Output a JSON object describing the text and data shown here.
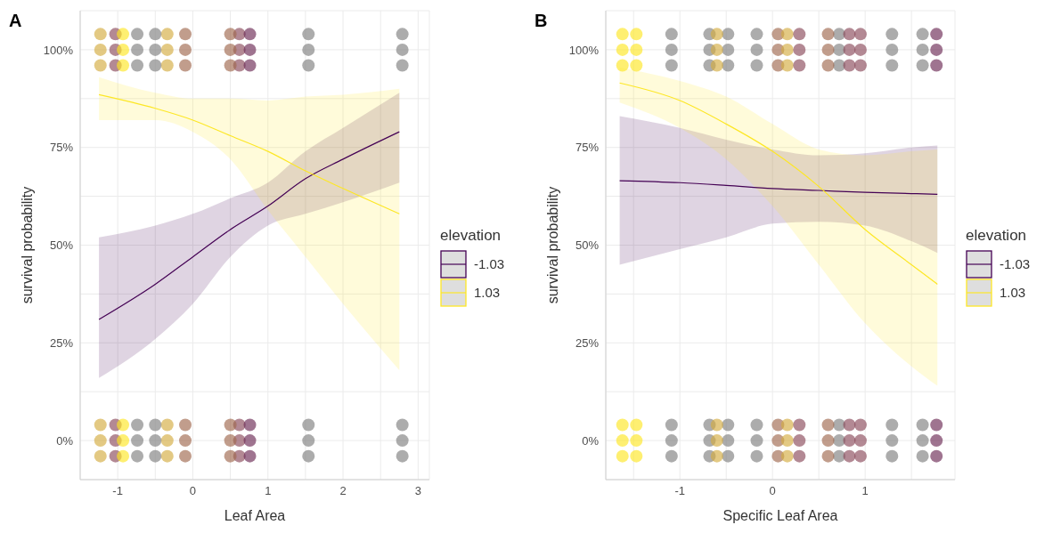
{
  "chart_data": [
    {
      "type": "line",
      "title": "A",
      "xlabel": "Leaf Area",
      "ylabel": "survival probability",
      "legend_title": "elevation",
      "legend": "right",
      "grid": true,
      "xlim": [
        -1.5,
        3.15
      ],
      "ylim": [
        -0.1,
        1.1
      ],
      "xticks": [
        {
          "value": -1.5,
          "label": null
        },
        -1,
        {
          "value": -0.5,
          "label": null
        },
        0,
        {
          "value": 0.5,
          "label": null
        },
        1,
        {
          "value": 1.5,
          "label": null
        },
        2,
        {
          "value": 2.5,
          "label": null
        },
        3
      ],
      "yticks": [
        {
          "value": 0,
          "label": "0%"
        },
        {
          "value": 0.125,
          "label": null
        },
        {
          "value": 0.25,
          "label": "25%"
        },
        {
          "value": 0.375,
          "label": null
        },
        {
          "value": 0.5,
          "label": "50%"
        },
        {
          "value": 0.625,
          "label": null
        },
        {
          "value": 0.75,
          "label": "75%"
        },
        {
          "value": 0.875,
          "label": null
        },
        {
          "value": 1,
          "label": "100%"
        }
      ],
      "series": [
        {
          "name": "-1.03",
          "type": "line",
          "color": "#440154",
          "x": [
            -1.25,
            -0.5,
            0,
            0.5,
            1,
            1.5,
            2,
            2.75
          ],
          "values": [
            0.31,
            0.4,
            0.47,
            0.54,
            0.6,
            0.67,
            0.72,
            0.79
          ],
          "lower": [
            0.16,
            0.26,
            0.35,
            0.47,
            0.55,
            0.58,
            0.61,
            0.66
          ],
          "upper": [
            0.52,
            0.55,
            0.58,
            0.62,
            0.66,
            0.74,
            0.8,
            0.89
          ]
        },
        {
          "name": "1.03",
          "type": "line",
          "color": "#fde725",
          "x": [
            -1.25,
            -0.5,
            0,
            0.5,
            1,
            1.5,
            2,
            2.75
          ],
          "values": [
            0.885,
            0.85,
            0.82,
            0.78,
            0.74,
            0.69,
            0.645,
            0.58
          ],
          "lower": [
            0.82,
            0.82,
            0.79,
            0.72,
            0.59,
            0.47,
            0.35,
            0.18
          ],
          "upper": [
            0.93,
            0.89,
            0.875,
            0.875,
            0.87,
            0.88,
            0.885,
            0.9
          ]
        },
        {
          "type": "scatter",
          "color": "#8b4a5a",
          "x": [
            -1.03,
            -1.03,
            -1.03,
            -1.03,
            -1.03,
            -1.03,
            0.62,
            0.62,
            0.62,
            0.62,
            0.62,
            0.62
          ],
          "values": [
            0.96,
            1,
            1.04,
            -0.04,
            0,
            0.04,
            0.96,
            1,
            1.04,
            -0.04,
            0,
            0.04
          ]
        },
        {
          "type": "scatter",
          "color": "#a0694f",
          "x": [
            -0.1,
            -0.1,
            -0.1,
            -0.1,
            -0.1,
            -0.1,
            0.5,
            0.5,
            0.5,
            0.5,
            0.5,
            0.5
          ],
          "values": [
            0.96,
            1,
            1.04,
            -0.04,
            0,
            0.04,
            0.96,
            1,
            1.04,
            -0.04,
            0,
            0.04
          ]
        },
        {
          "type": "scatter",
          "color": "#d4ac40",
          "x": [
            -1.23,
            -1.23,
            -1.23,
            -1.23,
            -1.23,
            -1.23,
            -0.34,
            -0.34,
            -0.34,
            -0.34,
            -0.34,
            -0.34
          ],
          "values": [
            0.96,
            1,
            1.04,
            -0.04,
            0,
            0.04,
            0.96,
            1,
            1.04,
            -0.04,
            0,
            0.04
          ]
        },
        {
          "type": "scatter",
          "color": "#808080",
          "x": [
            -0.74,
            -0.74,
            -0.74,
            -0.74,
            -0.74,
            -0.74,
            -0.5,
            -0.5,
            -0.5,
            -0.5,
            -0.5,
            -0.5,
            1.54,
            1.54,
            1.54,
            1.54,
            1.54,
            1.54,
            2.79,
            2.79,
            2.79,
            2.79,
            2.79,
            2.79
          ],
          "values": [
            0.96,
            1,
            1.04,
            -0.04,
            0,
            0.04,
            0.96,
            1,
            1.04,
            -0.04,
            0,
            0.04,
            0.96,
            1,
            1.04,
            -0.04,
            0,
            0.04,
            0.96,
            1,
            1.04,
            -0.04,
            0,
            0.04
          ]
        },
        {
          "type": "scatter",
          "color": "#6b2a55",
          "x": [
            0.76,
            0.76,
            0.76,
            0.76,
            0.76,
            0.76
          ],
          "values": [
            0.96,
            1,
            1.04,
            -0.04,
            0,
            0.04
          ]
        },
        {
          "type": "scatter",
          "color": "#fde725",
          "x": [
            -0.93,
            -0.93,
            -0.93,
            -0.93,
            -0.93,
            -0.93
          ],
          "values": [
            0.96,
            1,
            1.04,
            -0.04,
            0,
            0.04
          ]
        }
      ]
    },
    {
      "type": "line",
      "title": "B",
      "xlabel": "Specific Leaf Area",
      "ylabel": "survival probability",
      "legend_title": "elevation",
      "legend": "right",
      "grid": true,
      "xlim": [
        -1.8,
        1.97
      ],
      "ylim": [
        -0.1,
        1.1
      ],
      "xticks": [
        {
          "value": -1.5,
          "label": null
        },
        -1,
        {
          "value": -0.5,
          "label": null
        },
        0,
        {
          "value": 0.5,
          "label": null
        },
        1,
        {
          "value": 1.5,
          "label": null
        }
      ],
      "yticks": [
        {
          "value": 0,
          "label": "0%"
        },
        {
          "value": 0.125,
          "label": null
        },
        {
          "value": 0.25,
          "label": "25%"
        },
        {
          "value": 0.375,
          "label": null
        },
        {
          "value": 0.5,
          "label": "50%"
        },
        {
          "value": 0.625,
          "label": null
        },
        {
          "value": 0.75,
          "label": "75%"
        },
        {
          "value": 0.875,
          "label": null
        },
        {
          "value": 1,
          "label": "100%"
        }
      ],
      "series": [
        {
          "name": "-1.03",
          "type": "line",
          "color": "#440154",
          "x": [
            -1.65,
            -1,
            -0.5,
            0,
            0.5,
            1,
            1.5,
            1.78
          ],
          "values": [
            0.665,
            0.66,
            0.653,
            0.645,
            0.64,
            0.635,
            0.632,
            0.63
          ],
          "lower": [
            0.45,
            0.49,
            0.52,
            0.555,
            0.56,
            0.55,
            0.51,
            0.48
          ],
          "upper": [
            0.83,
            0.8,
            0.77,
            0.745,
            0.73,
            0.735,
            0.75,
            0.755
          ]
        },
        {
          "name": "1.03",
          "type": "line",
          "color": "#fde725",
          "x": [
            -1.65,
            -1,
            -0.5,
            0,
            0.5,
            1,
            1.5,
            1.78
          ],
          "values": [
            0.915,
            0.87,
            0.81,
            0.74,
            0.65,
            0.54,
            0.45,
            0.4
          ],
          "lower": [
            0.865,
            0.8,
            0.72,
            0.6,
            0.45,
            0.3,
            0.19,
            0.14
          ],
          "upper": [
            0.955,
            0.92,
            0.88,
            0.81,
            0.745,
            0.73,
            0.74,
            0.745
          ]
        },
        {
          "type": "scatter",
          "color": "#808080",
          "x": [
            -1.09,
            -1.09,
            -1.09,
            -1.09,
            -1.09,
            -1.09,
            -0.68,
            -0.68,
            -0.68,
            -0.68,
            -0.68,
            -0.68,
            -0.48,
            -0.48,
            -0.48,
            -0.48,
            -0.48,
            -0.48,
            -0.17,
            -0.17,
            -0.17,
            -0.17,
            -0.17,
            -0.17,
            0.72,
            0.72,
            0.72,
            0.72,
            0.72,
            0.72,
            1.29,
            1.29,
            1.29,
            1.29,
            1.29,
            1.29,
            1.62,
            1.62,
            1.62,
            1.62,
            1.62,
            1.62
          ],
          "values": [
            0.96,
            1,
            1.04,
            -0.04,
            0,
            0.04,
            0.96,
            1,
            1.04,
            -0.04,
            0,
            0.04,
            0.96,
            1,
            1.04,
            -0.04,
            0,
            0.04,
            0.96,
            1,
            1.04,
            -0.04,
            0,
            0.04,
            0.96,
            1,
            1.04,
            -0.04,
            0,
            0.04,
            0.96,
            1,
            1.04,
            -0.04,
            0,
            0.04,
            0.96,
            1,
            1.04,
            -0.04,
            0,
            0.04
          ]
        },
        {
          "type": "scatter",
          "color": "#a0694f",
          "x": [
            0.06,
            0.06,
            0.06,
            0.06,
            0.06,
            0.06,
            0.6,
            0.6,
            0.6,
            0.6,
            0.6,
            0.6
          ],
          "values": [
            0.96,
            1,
            1.04,
            -0.04,
            0,
            0.04,
            0.96,
            1,
            1.04,
            -0.04,
            0,
            0.04
          ]
        },
        {
          "type": "scatter",
          "color": "#d4ac40",
          "x": [
            -0.6,
            -0.6,
            -0.6,
            -0.6,
            -0.6,
            -0.6,
            0.16,
            0.16,
            0.16,
            0.16,
            0.16,
            0.16
          ],
          "values": [
            0.96,
            1,
            1.04,
            -0.04,
            0,
            0.04,
            0.96,
            1,
            1.04,
            -0.04,
            0,
            0.04
          ]
        },
        {
          "type": "scatter",
          "color": "#8b4a5a",
          "x": [
            0.29,
            0.29,
            0.29,
            0.29,
            0.29,
            0.29,
            0.83,
            0.83,
            0.83,
            0.83,
            0.83,
            0.83,
            0.95,
            0.95,
            0.95,
            0.95,
            0.95,
            0.95
          ],
          "values": [
            0.96,
            1,
            1.04,
            -0.04,
            0,
            0.04,
            0.96,
            1,
            1.04,
            -0.04,
            0,
            0.04,
            0.96,
            1,
            1.04,
            -0.04,
            0,
            0.04
          ]
        },
        {
          "type": "scatter",
          "color": "#6b2a55",
          "x": [
            1.77,
            1.77,
            1.77,
            1.77,
            1.77,
            1.77
          ],
          "values": [
            0.96,
            1,
            1.04,
            -0.04,
            0,
            0.04
          ]
        },
        {
          "type": "scatter",
          "color": "#fde725",
          "x": [
            -1.62,
            -1.62,
            -1.62,
            -1.62,
            -1.62,
            -1.62,
            -1.47,
            -1.47,
            -1.47,
            -1.47,
            -1.47,
            -1.47
          ],
          "values": [
            0.96,
            1,
            1.04,
            -0.04,
            0,
            0.04,
            0.96,
            1,
            1.04,
            -0.04,
            0,
            0.04
          ]
        }
      ]
    }
  ]
}
